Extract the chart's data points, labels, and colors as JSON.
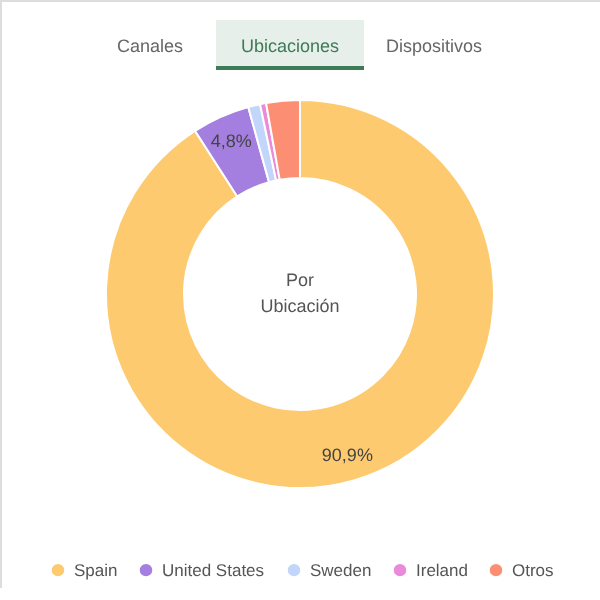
{
  "chart_data": {
    "type": "donut",
    "categories": [
      "Spain",
      "United States",
      "Sweden",
      "Ireland",
      "Otros"
    ],
    "values": [
      90.9,
      4.8,
      1.0,
      0.5,
      2.8
    ],
    "colors": [
      "#fdca6f",
      "#a57fe0",
      "#c2d5fb",
      "#e98bd8",
      "#fc8f73"
    ],
    "value_labels": [
      "90,9%",
      "4,8%",
      null,
      null,
      null
    ],
    "annotations": [
      "Canales",
      "Ubicaciones",
      "Dispositivos",
      "Por",
      "Ubicación"
    ],
    "legend": "bottom"
  }
}
